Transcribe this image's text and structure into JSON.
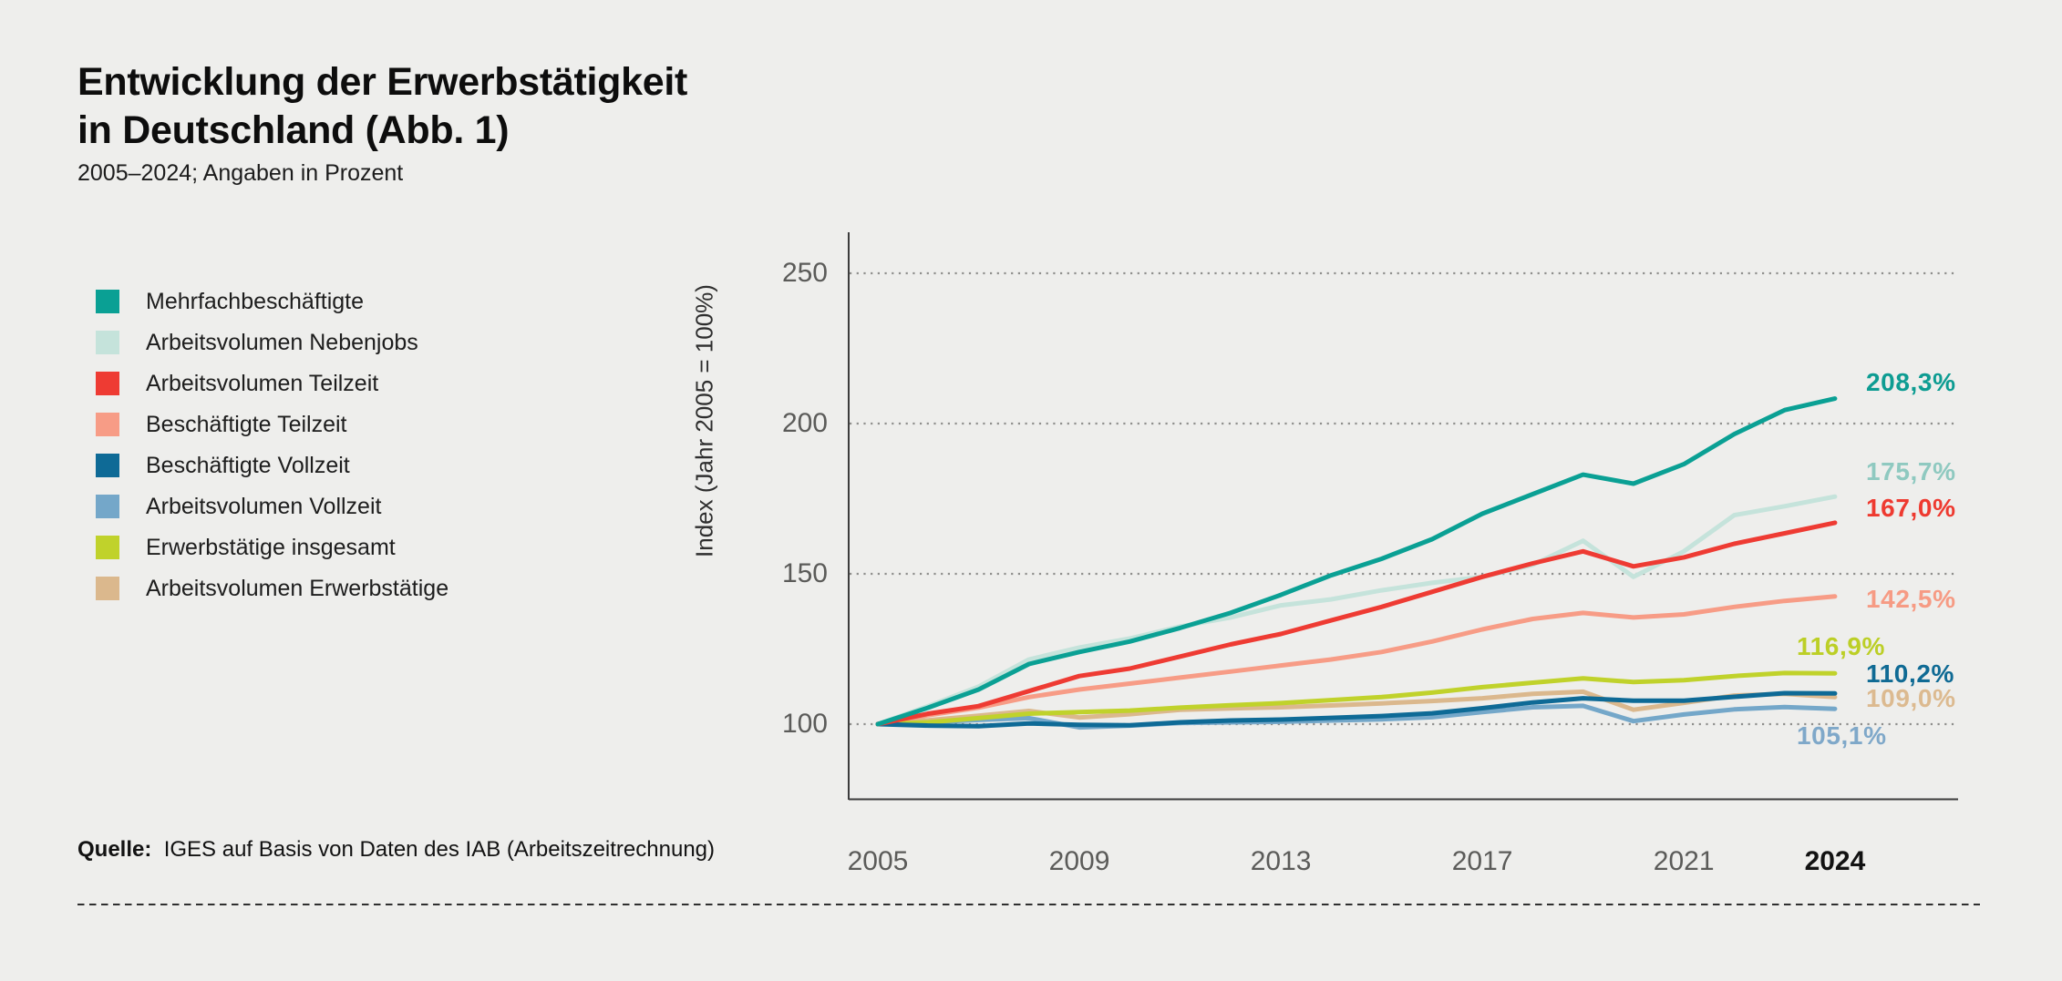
{
  "header": {
    "title_line1": "Entwicklung der Erwerbstätigkeit",
    "title_line2": "in Deutschland (Abb. 1)",
    "subtitle": "2005–2024; Angaben in Prozent"
  },
  "source": {
    "label": "Quelle:",
    "text": "IGES auf Basis von Daten des IAB (Arbeitszeitrechnung)"
  },
  "chart_data": {
    "type": "line",
    "title": "Entwicklung der Erwerbstätigkeit in Deutschland (Abb. 1)",
    "subtitle": "2005–2024; Angaben in Prozent",
    "ylabel": "Index (Jahr 2005 = 100%)",
    "xlabel": "",
    "x": [
      2005,
      2006,
      2007,
      2008,
      2009,
      2010,
      2011,
      2012,
      2013,
      2014,
      2015,
      2016,
      2017,
      2018,
      2019,
      2020,
      2021,
      2022,
      2023,
      2024
    ],
    "x_tick_labels": [
      "2005",
      "2009",
      "2013",
      "2017",
      "2021",
      "2024"
    ],
    "x_tick_years": [
      2005,
      2009,
      2013,
      2017,
      2021,
      2024
    ],
    "y_ticks": [
      250,
      200,
      150,
      100
    ],
    "ylim": [
      75,
      263
    ],
    "grid": "horizontal-dotted",
    "legend_position": "left",
    "colors": {
      "background": "#EEEEEC",
      "axis": "#3c3c3c",
      "gridline": "#8f8f8d",
      "tick_text": "#5b5b59",
      "separator": "#2f2f2f"
    },
    "series": [
      {
        "id": "mehrfach",
        "label": "Mehrfachbeschäftigte",
        "color": "#0AA094",
        "label_color": "#0D9C92",
        "end_label": "208,3%",
        "values": [
          100,
          105.5,
          111.5,
          120,
          124,
          127.5,
          132,
          137,
          143,
          149.5,
          155,
          161.5,
          170,
          176.5,
          183,
          180,
          186.5,
          196.5,
          204.5,
          208.3
        ]
      },
      {
        "id": "nebenjobs",
        "label": "Arbeitsvolumen Nebenjobs",
        "color": "#C5E3DB",
        "label_color": "#8FC9C0",
        "end_label": "175,7%",
        "values": [
          100,
          106,
          112.5,
          121.5,
          125.5,
          128.5,
          132.5,
          135.5,
          139.5,
          141.5,
          144.5,
          147,
          149,
          153,
          161,
          149,
          157.5,
          169.5,
          172.5,
          175.7
        ]
      },
      {
        "id": "av_teilzeit",
        "label": "Arbeitsvolumen Teilzeit",
        "color": "#EE3B33",
        "label_color": "#EE3A30",
        "end_label": "167,0%",
        "values": [
          100,
          103.5,
          106,
          111,
          116,
          118.5,
          122.5,
          126.5,
          130,
          134.5,
          139,
          144,
          149,
          153.5,
          157.5,
          152.5,
          155.5,
          160,
          163.5,
          167
        ]
      },
      {
        "id": "b_teilzeit",
        "label": "Beschäftigte Teilzeit",
        "color": "#F79C86",
        "label_color": "#F69B84",
        "end_label": "142,5%",
        "values": [
          100,
          103,
          105.5,
          109,
          111.5,
          113.5,
          115.5,
          117.5,
          119.5,
          121.5,
          124,
          127.5,
          131.5,
          135,
          137,
          135.5,
          136.5,
          139,
          141,
          142.5
        ]
      },
      {
        "id": "b_vollzeit",
        "label": "Beschäftigte Vollzeit",
        "color": "#0E6A96",
        "label_color": "#0F6A94",
        "end_label": "110,2%",
        "values": [
          100,
          99.5,
          99.3,
          100.2,
          99.8,
          99.6,
          100.6,
          101.2,
          101.5,
          102.1,
          102.7,
          103.6,
          105.3,
          107.2,
          108.6,
          107.8,
          107.8,
          109.1,
          110.3,
          110.2
        ]
      },
      {
        "id": "av_vollzeit",
        "label": "Arbeitsvolumen Vollzeit",
        "color": "#74A7C9",
        "label_color": "#7FA8C9",
        "end_label": "105,1%",
        "values": [
          100,
          100.6,
          101.4,
          102,
          98.9,
          99.5,
          100.4,
          100.6,
          100.8,
          101.2,
          101.6,
          102.3,
          104,
          105.6,
          106.1,
          101,
          103.2,
          104.9,
          105.7,
          105.1
        ]
      },
      {
        "id": "erwerbstaetige",
        "label": "Erwerbstätige insgesamt",
        "color": "#C0D22B",
        "label_color": "#BCCF26",
        "end_label": "116,9%",
        "values": [
          100,
          100.6,
          102,
          103.5,
          104,
          104.5,
          105.5,
          106.3,
          107,
          108,
          109,
          110.5,
          112.3,
          113.8,
          115.2,
          114,
          114.6,
          116,
          117,
          116.9
        ]
      },
      {
        "id": "av_erwerbstaetige",
        "label": "Arbeitsvolumen Erwerbstätige",
        "color": "#DBB88D",
        "label_color": "#DCBA90",
        "end_label": "109,0%",
        "values": [
          100,
          101.3,
          102.8,
          104.4,
          102.2,
          103.3,
          104.8,
          105.2,
          105.6,
          106.2,
          106.9,
          107.7,
          108.6,
          110.1,
          110.8,
          104.8,
          107.1,
          109.5,
          110.1,
          109
        ]
      }
    ]
  }
}
